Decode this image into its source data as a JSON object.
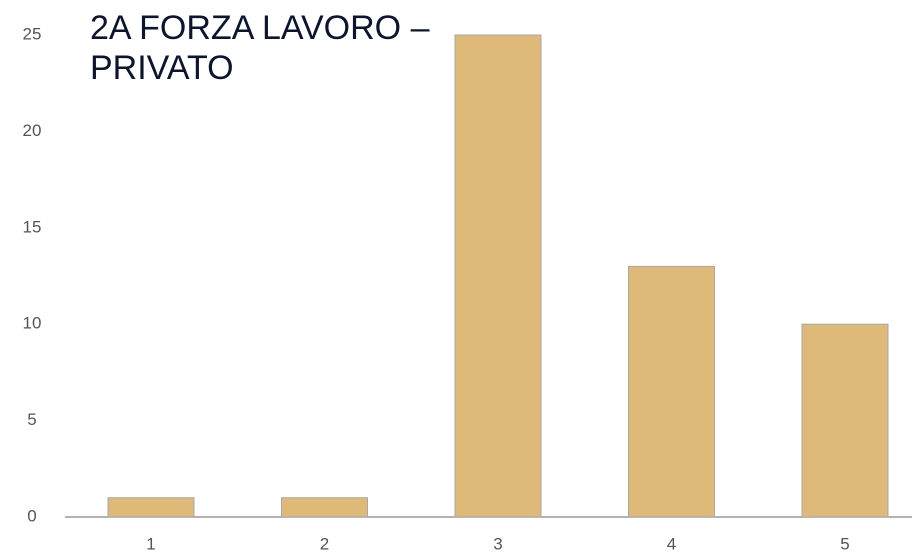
{
  "chart_data": {
    "type": "bar",
    "title": "2A FORZA LAVORO – PRIVATO",
    "categories": [
      "1",
      "2",
      "3",
      "4",
      "5"
    ],
    "values": [
      1,
      1,
      25,
      13,
      10
    ],
    "color": "#dfb977",
    "ylim": [
      0,
      25
    ],
    "yticks": [
      0,
      5,
      10,
      15,
      20,
      25
    ],
    "grid": false
  }
}
